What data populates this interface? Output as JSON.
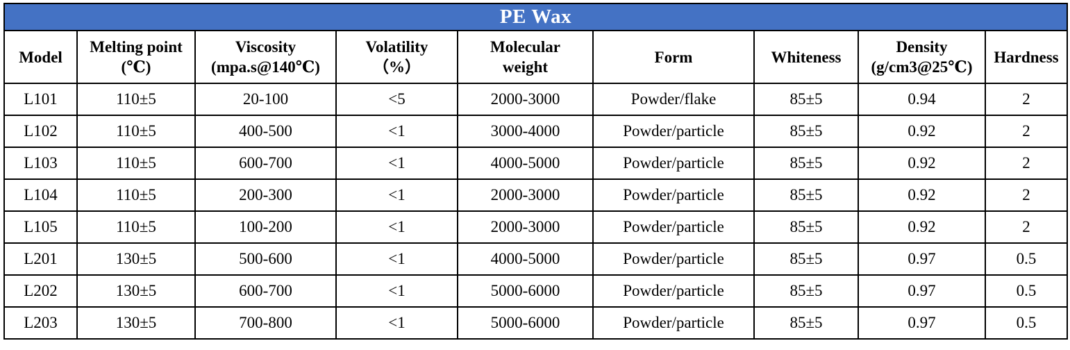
{
  "title": "PE Wax",
  "headers": [
    {
      "line1": "Model",
      "line2": ""
    },
    {
      "line1": "Melting point",
      "line2": "(℃)"
    },
    {
      "line1": "Viscosity",
      "line2": "(mpa.s@140℃)"
    },
    {
      "line1": "Volatility",
      "line2": "（%）"
    },
    {
      "line1": "Molecular",
      "line2": "weight"
    },
    {
      "line1": "Form",
      "line2": ""
    },
    {
      "line1": "Whiteness",
      "line2": ""
    },
    {
      "line1": "Density",
      "line2": "(g/cm3@25℃)"
    },
    {
      "line1": "Hardness",
      "line2": ""
    }
  ],
  "rows": [
    [
      "L101",
      "110±5",
      "20-100",
      "<5",
      "2000-3000",
      "Powder/flake",
      "85±5",
      "0.94",
      "2"
    ],
    [
      "L102",
      "110±5",
      "400-500",
      "<1",
      "3000-4000",
      "Powder/particle",
      "85±5",
      "0.92",
      "2"
    ],
    [
      "L103",
      "110±5",
      "600-700",
      "<1",
      "4000-5000",
      "Powder/particle",
      "85±5",
      "0.92",
      "2"
    ],
    [
      "L104",
      "110±5",
      "200-300",
      "<1",
      "2000-3000",
      "Powder/particle",
      "85±5",
      "0.92",
      "2"
    ],
    [
      "L105",
      "110±5",
      "100-200",
      "<1",
      "2000-3000",
      "Powder/particle",
      "85±5",
      "0.92",
      "2"
    ],
    [
      "L201",
      "130±5",
      "500-600",
      "<1",
      "4000-5000",
      "Powder/particle",
      "85±5",
      "0.97",
      "0.5"
    ],
    [
      "L202",
      "130±5",
      "600-700",
      "<1",
      "5000-6000",
      "Powder/particle",
      "85±5",
      "0.97",
      "0.5"
    ],
    [
      "L203",
      "130±5",
      "700-800",
      "<1",
      "5000-6000",
      "Powder/particle",
      "85±5",
      "0.97",
      "0.5"
    ]
  ]
}
